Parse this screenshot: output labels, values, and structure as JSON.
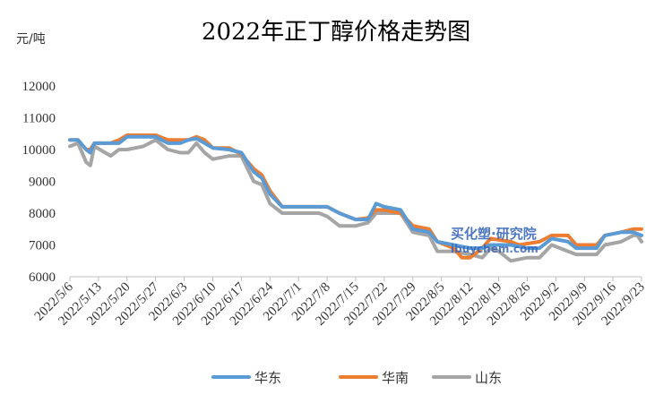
{
  "chart_data": {
    "type": "line",
    "title": "2022年正丁醇价格走势图",
    "ylabel": "元/吨",
    "ylim": [
      6000,
      12000
    ],
    "yticks": [
      6000,
      7000,
      8000,
      9000,
      10000,
      11000,
      12000
    ],
    "xlim": [
      "2022/5/6",
      "2022/9/23"
    ],
    "x_tick_labels": [
      "2022/5/6",
      "2022/5/13",
      "2022/5/20",
      "2022/5/27",
      "2022/6/3",
      "2022/6/10",
      "2022/6/17",
      "2022/6/24",
      "2022/7/1",
      "2022/7/8",
      "2022/7/15",
      "2022/7/22",
      "2022/7/29",
      "2022/8/5",
      "2022/8/12",
      "2022/8/19",
      "2022/8/26",
      "2022/9/2",
      "2022/9/9",
      "2022/9/16",
      "2022/9/23"
    ],
    "legend_position": "bottom",
    "grid": false,
    "series": [
      {
        "name": "华东",
        "color": "#5B9BD5",
        "points": [
          [
            "2022/5/6",
            10300
          ],
          [
            "2022/5/8",
            10300
          ],
          [
            "2022/5/10",
            10000
          ],
          [
            "2022/5/11",
            9900
          ],
          [
            "2022/5/12",
            10200
          ],
          [
            "2022/5/16",
            10200
          ],
          [
            "2022/5/18",
            10200
          ],
          [
            "2022/5/20",
            10400
          ],
          [
            "2022/5/27",
            10400
          ],
          [
            "2022/5/30",
            10200
          ],
          [
            "2022/6/2",
            10200
          ],
          [
            "2022/6/4",
            10300
          ],
          [
            "2022/6/6",
            10350
          ],
          [
            "2022/6/8",
            10200
          ],
          [
            "2022/6/10",
            10050
          ],
          [
            "2022/6/14",
            10000
          ],
          [
            "2022/6/17",
            9900
          ],
          [
            "2022/6/20",
            9300
          ],
          [
            "2022/6/22",
            9100
          ],
          [
            "2022/6/24",
            8600
          ],
          [
            "2022/6/27",
            8200
          ],
          [
            "2022/7/8",
            8200
          ],
          [
            "2022/7/11",
            8000
          ],
          [
            "2022/7/13",
            7900
          ],
          [
            "2022/7/15",
            7800
          ],
          [
            "2022/7/18",
            7800
          ],
          [
            "2022/7/20",
            8300
          ],
          [
            "2022/7/22",
            8200
          ],
          [
            "2022/7/26",
            8100
          ],
          [
            "2022/7/29",
            7500
          ],
          [
            "2022/8/2",
            7400
          ],
          [
            "2022/8/4",
            7100
          ],
          [
            "2022/8/8",
            7000
          ],
          [
            "2022/8/12",
            6900
          ],
          [
            "2022/8/15",
            6900
          ],
          [
            "2022/8/17",
            7000
          ],
          [
            "2022/8/22",
            7000
          ],
          [
            "2022/8/26",
            6900
          ],
          [
            "2022/8/29",
            6900
          ],
          [
            "2022/9/1",
            7200
          ],
          [
            "2022/9/5",
            7100
          ],
          [
            "2022/9/7",
            6900
          ],
          [
            "2022/9/12",
            6900
          ],
          [
            "2022/9/14",
            7300
          ],
          [
            "2022/9/18",
            7400
          ],
          [
            "2022/9/21",
            7400
          ],
          [
            "2022/9/23",
            7300
          ]
        ]
      },
      {
        "name": "华南",
        "color": "#ED7D31",
        "points": [
          [
            "2022/5/6",
            10300
          ],
          [
            "2022/5/8",
            10300
          ],
          [
            "2022/5/10",
            10000
          ],
          [
            "2022/5/11",
            10000
          ],
          [
            "2022/5/12",
            10200
          ],
          [
            "2022/5/16",
            10200
          ],
          [
            "2022/5/18",
            10300
          ],
          [
            "2022/5/20",
            10450
          ],
          [
            "2022/5/27",
            10450
          ],
          [
            "2022/5/30",
            10300
          ],
          [
            "2022/6/2",
            10300
          ],
          [
            "2022/6/4",
            10300
          ],
          [
            "2022/6/6",
            10400
          ],
          [
            "2022/6/8",
            10300
          ],
          [
            "2022/6/10",
            10050
          ],
          [
            "2022/6/14",
            10050
          ],
          [
            "2022/6/17",
            9850
          ],
          [
            "2022/6/20",
            9400
          ],
          [
            "2022/6/22",
            9200
          ],
          [
            "2022/6/24",
            8700
          ],
          [
            "2022/6/27",
            8200
          ],
          [
            "2022/7/8",
            8200
          ],
          [
            "2022/7/11",
            8000
          ],
          [
            "2022/7/13",
            7900
          ],
          [
            "2022/7/15",
            7800
          ],
          [
            "2022/7/18",
            7850
          ],
          [
            "2022/7/20",
            8100
          ],
          [
            "2022/7/22",
            8100
          ],
          [
            "2022/7/26",
            8000
          ],
          [
            "2022/7/29",
            7600
          ],
          [
            "2022/8/2",
            7500
          ],
          [
            "2022/8/4",
            7100
          ],
          [
            "2022/8/8",
            6900
          ],
          [
            "2022/8/10",
            6600
          ],
          [
            "2022/8/12",
            6600
          ],
          [
            "2022/8/15",
            6900
          ],
          [
            "2022/8/17",
            7200
          ],
          [
            "2022/8/22",
            7100
          ],
          [
            "2022/8/24",
            7000
          ],
          [
            "2022/8/29",
            7100
          ],
          [
            "2022/9/1",
            7300
          ],
          [
            "2022/9/5",
            7300
          ],
          [
            "2022/9/7",
            7000
          ],
          [
            "2022/9/12",
            7000
          ],
          [
            "2022/9/14",
            7300
          ],
          [
            "2022/9/18",
            7400
          ],
          [
            "2022/9/21",
            7500
          ],
          [
            "2022/9/23",
            7500
          ]
        ]
      },
      {
        "name": "山东",
        "color": "#A5A5A5",
        "points": [
          [
            "2022/5/6",
            10100
          ],
          [
            "2022/5/8",
            10200
          ],
          [
            "2022/5/10",
            9600
          ],
          [
            "2022/5/11",
            9500
          ],
          [
            "2022/5/12",
            10100
          ],
          [
            "2022/5/16",
            9800
          ],
          [
            "2022/5/18",
            10000
          ],
          [
            "2022/5/20",
            10000
          ],
          [
            "2022/5/24",
            10100
          ],
          [
            "2022/5/27",
            10300
          ],
          [
            "2022/5/30",
            10000
          ],
          [
            "2022/6/2",
            9900
          ],
          [
            "2022/6/4",
            9900
          ],
          [
            "2022/6/6",
            10200
          ],
          [
            "2022/6/8",
            9900
          ],
          [
            "2022/6/10",
            9700
          ],
          [
            "2022/6/14",
            9800
          ],
          [
            "2022/6/17",
            9800
          ],
          [
            "2022/6/20",
            9000
          ],
          [
            "2022/6/22",
            8900
          ],
          [
            "2022/6/24",
            8300
          ],
          [
            "2022/6/27",
            8000
          ],
          [
            "2022/7/6",
            8000
          ],
          [
            "2022/7/8",
            7900
          ],
          [
            "2022/7/11",
            7600
          ],
          [
            "2022/7/15",
            7600
          ],
          [
            "2022/7/18",
            7700
          ],
          [
            "2022/7/20",
            8000
          ],
          [
            "2022/7/22",
            8000
          ],
          [
            "2022/7/26",
            8000
          ],
          [
            "2022/7/29",
            7400
          ],
          [
            "2022/8/2",
            7300
          ],
          [
            "2022/8/4",
            6800
          ],
          [
            "2022/8/8",
            6800
          ],
          [
            "2022/8/12",
            6700
          ],
          [
            "2022/8/15",
            6600
          ],
          [
            "2022/8/17",
            6900
          ],
          [
            "2022/8/19",
            6800
          ],
          [
            "2022/8/22",
            6500
          ],
          [
            "2022/8/26",
            6600
          ],
          [
            "2022/8/29",
            6600
          ],
          [
            "2022/9/1",
            7000
          ],
          [
            "2022/9/5",
            6800
          ],
          [
            "2022/9/7",
            6700
          ],
          [
            "2022/9/12",
            6700
          ],
          [
            "2022/9/14",
            7000
          ],
          [
            "2022/9/18",
            7100
          ],
          [
            "2022/9/21",
            7300
          ],
          [
            "2022/9/22",
            7300
          ],
          [
            "2022/9/23",
            7100
          ]
        ]
      }
    ]
  },
  "watermark": {
    "line1": "买化塑·研究院",
    "line2": "ibuychem.com",
    "color": "#2E5FB8"
  }
}
